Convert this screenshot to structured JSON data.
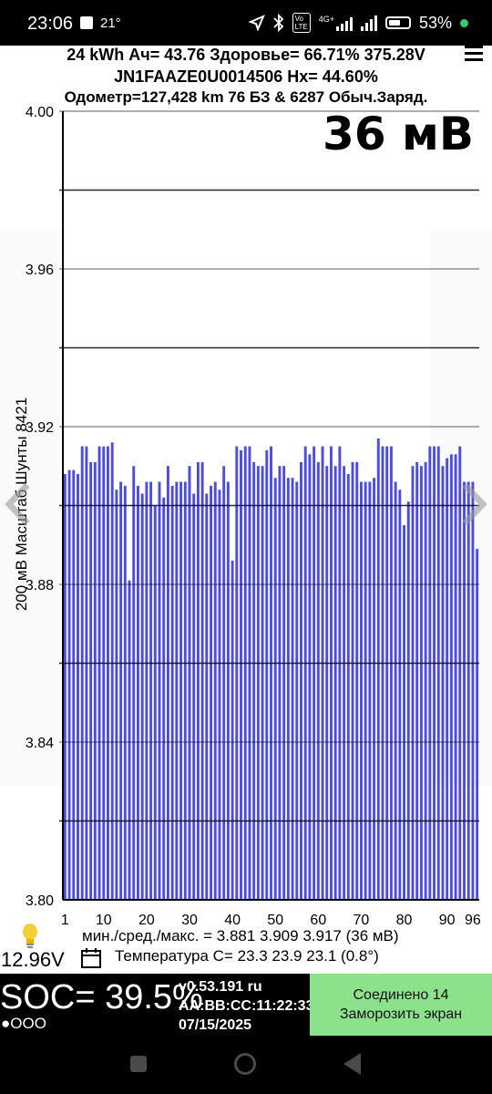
{
  "status_bar": {
    "time": "23:06",
    "temperature": "21°",
    "battery_percent": "53%",
    "icons": [
      "gallery-icon",
      "location-icon",
      "bluetooth-icon",
      "volte-icon",
      "signal-4g-icon",
      "signal-icon",
      "battery-icon",
      "active-dot-icon"
    ]
  },
  "header": {
    "line1": "24 kWh  Ач= 43.76  Здоровье= 66.71%   375.28V",
    "line2": "JN1FAAZE0U0014506   Hx= 44.60%",
    "line3": "Одометр=127,428 km 76 БЗ & 6287 Обыч.Заряд."
  },
  "spread_label": "36 мВ",
  "y_axis_label": "200 мВ Масштаб  Шунты 8421",
  "stats_line": "мин./сред./макс. = 3.881  3.909  3.917  (36 мВ)",
  "voltage_12v": "12.96V",
  "temperature_line": "Температура C= 23.3  23.9  23.1  (0.8°)",
  "soc_text": "SOC= 39.5%",
  "dots_text": "●OOO",
  "info": {
    "version": "v0.53.191 ru",
    "mac": "AA:BB:CC:11:22:33",
    "date": "07/15/2025"
  },
  "connection_button": {
    "line1": "Соединено 14",
    "line2": "Заморозить экран"
  },
  "colors": {
    "bar": "#4c4ce0",
    "grid": "#111111",
    "accent_button": "#8be28b"
  },
  "chart_data": {
    "type": "bar",
    "ylim": [
      3.8,
      4.0
    ],
    "y_ticks": [
      "3.80",
      "3.84",
      "3.88",
      "3.92",
      "3.96",
      "4.00"
    ],
    "y_tick_values": [
      3.8,
      3.84,
      3.88,
      3.92,
      3.96,
      4.0
    ],
    "x_ticks": [
      "1",
      "10",
      "20",
      "30",
      "40",
      "50",
      "60",
      "70",
      "80",
      "90",
      "96"
    ],
    "x_tick_values": [
      1,
      10,
      20,
      30,
      40,
      50,
      60,
      70,
      80,
      90,
      96
    ],
    "grid": true,
    "values": [
      3.908,
      3.909,
      3.909,
      3.908,
      3.915,
      3.915,
      3.911,
      3.911,
      3.915,
      3.915,
      3.915,
      3.916,
      3.904,
      3.906,
      3.905,
      3.881,
      3.91,
      3.905,
      3.903,
      3.906,
      3.906,
      3.9,
      3.906,
      3.902,
      3.91,
      3.905,
      3.906,
      3.906,
      3.906,
      3.91,
      3.903,
      3.911,
      3.911,
      3.903,
      3.905,
      3.906,
      3.904,
      3.91,
      3.906,
      3.886,
      3.915,
      3.914,
      3.915,
      3.915,
      3.911,
      3.91,
      3.91,
      3.914,
      3.915,
      3.907,
      3.91,
      3.91,
      3.907,
      3.907,
      3.906,
      3.911,
      3.915,
      3.913,
      3.915,
      3.911,
      3.915,
      3.91,
      3.915,
      3.91,
      3.915,
      3.91,
      3.908,
      3.911,
      3.911,
      3.906,
      3.906,
      3.906,
      3.907,
      3.917,
      3.915,
      3.915,
      3.915,
      3.906,
      3.904,
      3.895,
      3.901,
      3.91,
      3.911,
      3.91,
      3.911,
      3.915,
      3.915,
      3.915,
      3.91,
      3.912,
      3.913,
      3.913,
      3.915,
      3.906,
      3.906,
      3.906,
      3.889
    ]
  }
}
